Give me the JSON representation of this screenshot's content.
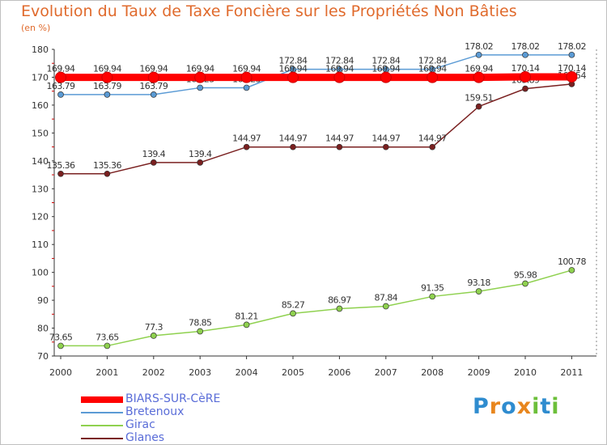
{
  "title": "Evolution du Taux de Taxe Foncière sur les Propriétés Non Bâties",
  "unit_label": "(en %)",
  "logo": {
    "letters": [
      "P",
      "r",
      "o",
      "x",
      "i",
      "t",
      "i"
    ],
    "colors": [
      "#2f8ccf",
      "#e8861e",
      "#2f8ccf",
      "#e8861e",
      "#6cbf3a",
      "#2f8ccf",
      "#6cbf3a"
    ]
  },
  "chart_data": {
    "type": "line",
    "x": [
      "2000",
      "2001",
      "2002",
      "2003",
      "2004",
      "2005",
      "2006",
      "2007",
      "2008",
      "2009",
      "2010",
      "2011"
    ],
    "ylim": [
      70,
      180
    ],
    "yticks": [
      "70",
      "80",
      "90",
      "100",
      "110",
      "120",
      "130",
      "140",
      "150",
      "160",
      "170",
      "180"
    ],
    "grid": "none",
    "legend_position": "bottom-left",
    "series": [
      {
        "name": "BIARS-SUR-CèRE",
        "color": "#ff0000",
        "values": [
          169.94,
          169.94,
          169.94,
          169.94,
          169.94,
          169.94,
          169.94,
          169.94,
          169.94,
          169.94,
          170.14,
          170.14
        ],
        "labels": [
          "169.94",
          "169.94",
          "169.94",
          "169.94",
          "169.94",
          "169.94",
          "169.94",
          "169.94",
          "169.94",
          "169.94",
          "170.14",
          "170.14"
        ]
      },
      {
        "name": "Bretenoux",
        "color": "#5b9bd5",
        "values": [
          163.79,
          163.79,
          163.79,
          166.23,
          166.23,
          172.84,
          172.84,
          172.84,
          172.84,
          178.02,
          178.02,
          178.02
        ],
        "labels": [
          "163.79",
          "163.79",
          "163.79",
          "166.23",
          "166.23",
          "172.84",
          "172.84",
          "172.84",
          "172.84",
          "178.02",
          "178.02",
          "178.02"
        ]
      },
      {
        "name": "Girac",
        "color": "#8fd14f",
        "values": [
          73.65,
          73.65,
          77.3,
          78.85,
          81.21,
          85.27,
          86.97,
          87.84,
          91.35,
          93.18,
          95.98,
          100.78
        ],
        "labels": [
          "73.65",
          "73.65",
          "77.3",
          "78.85",
          "81.21",
          "85.27",
          "86.97",
          "87.84",
          "91.35",
          "93.18",
          "95.98",
          "100.78"
        ]
      },
      {
        "name": "Glanes",
        "color": "#7a2020",
        "values": [
          135.36,
          135.36,
          139.4,
          139.4,
          144.97,
          144.97,
          144.97,
          144.97,
          144.97,
          159.51,
          165.89,
          167.54
        ],
        "labels": [
          "135.36",
          "135.36",
          "139.4",
          "139.4",
          "144.97",
          "144.97",
          "144.97",
          "144.97",
          "144.97",
          "159.51",
          "165.89",
          "167.54"
        ]
      }
    ]
  }
}
